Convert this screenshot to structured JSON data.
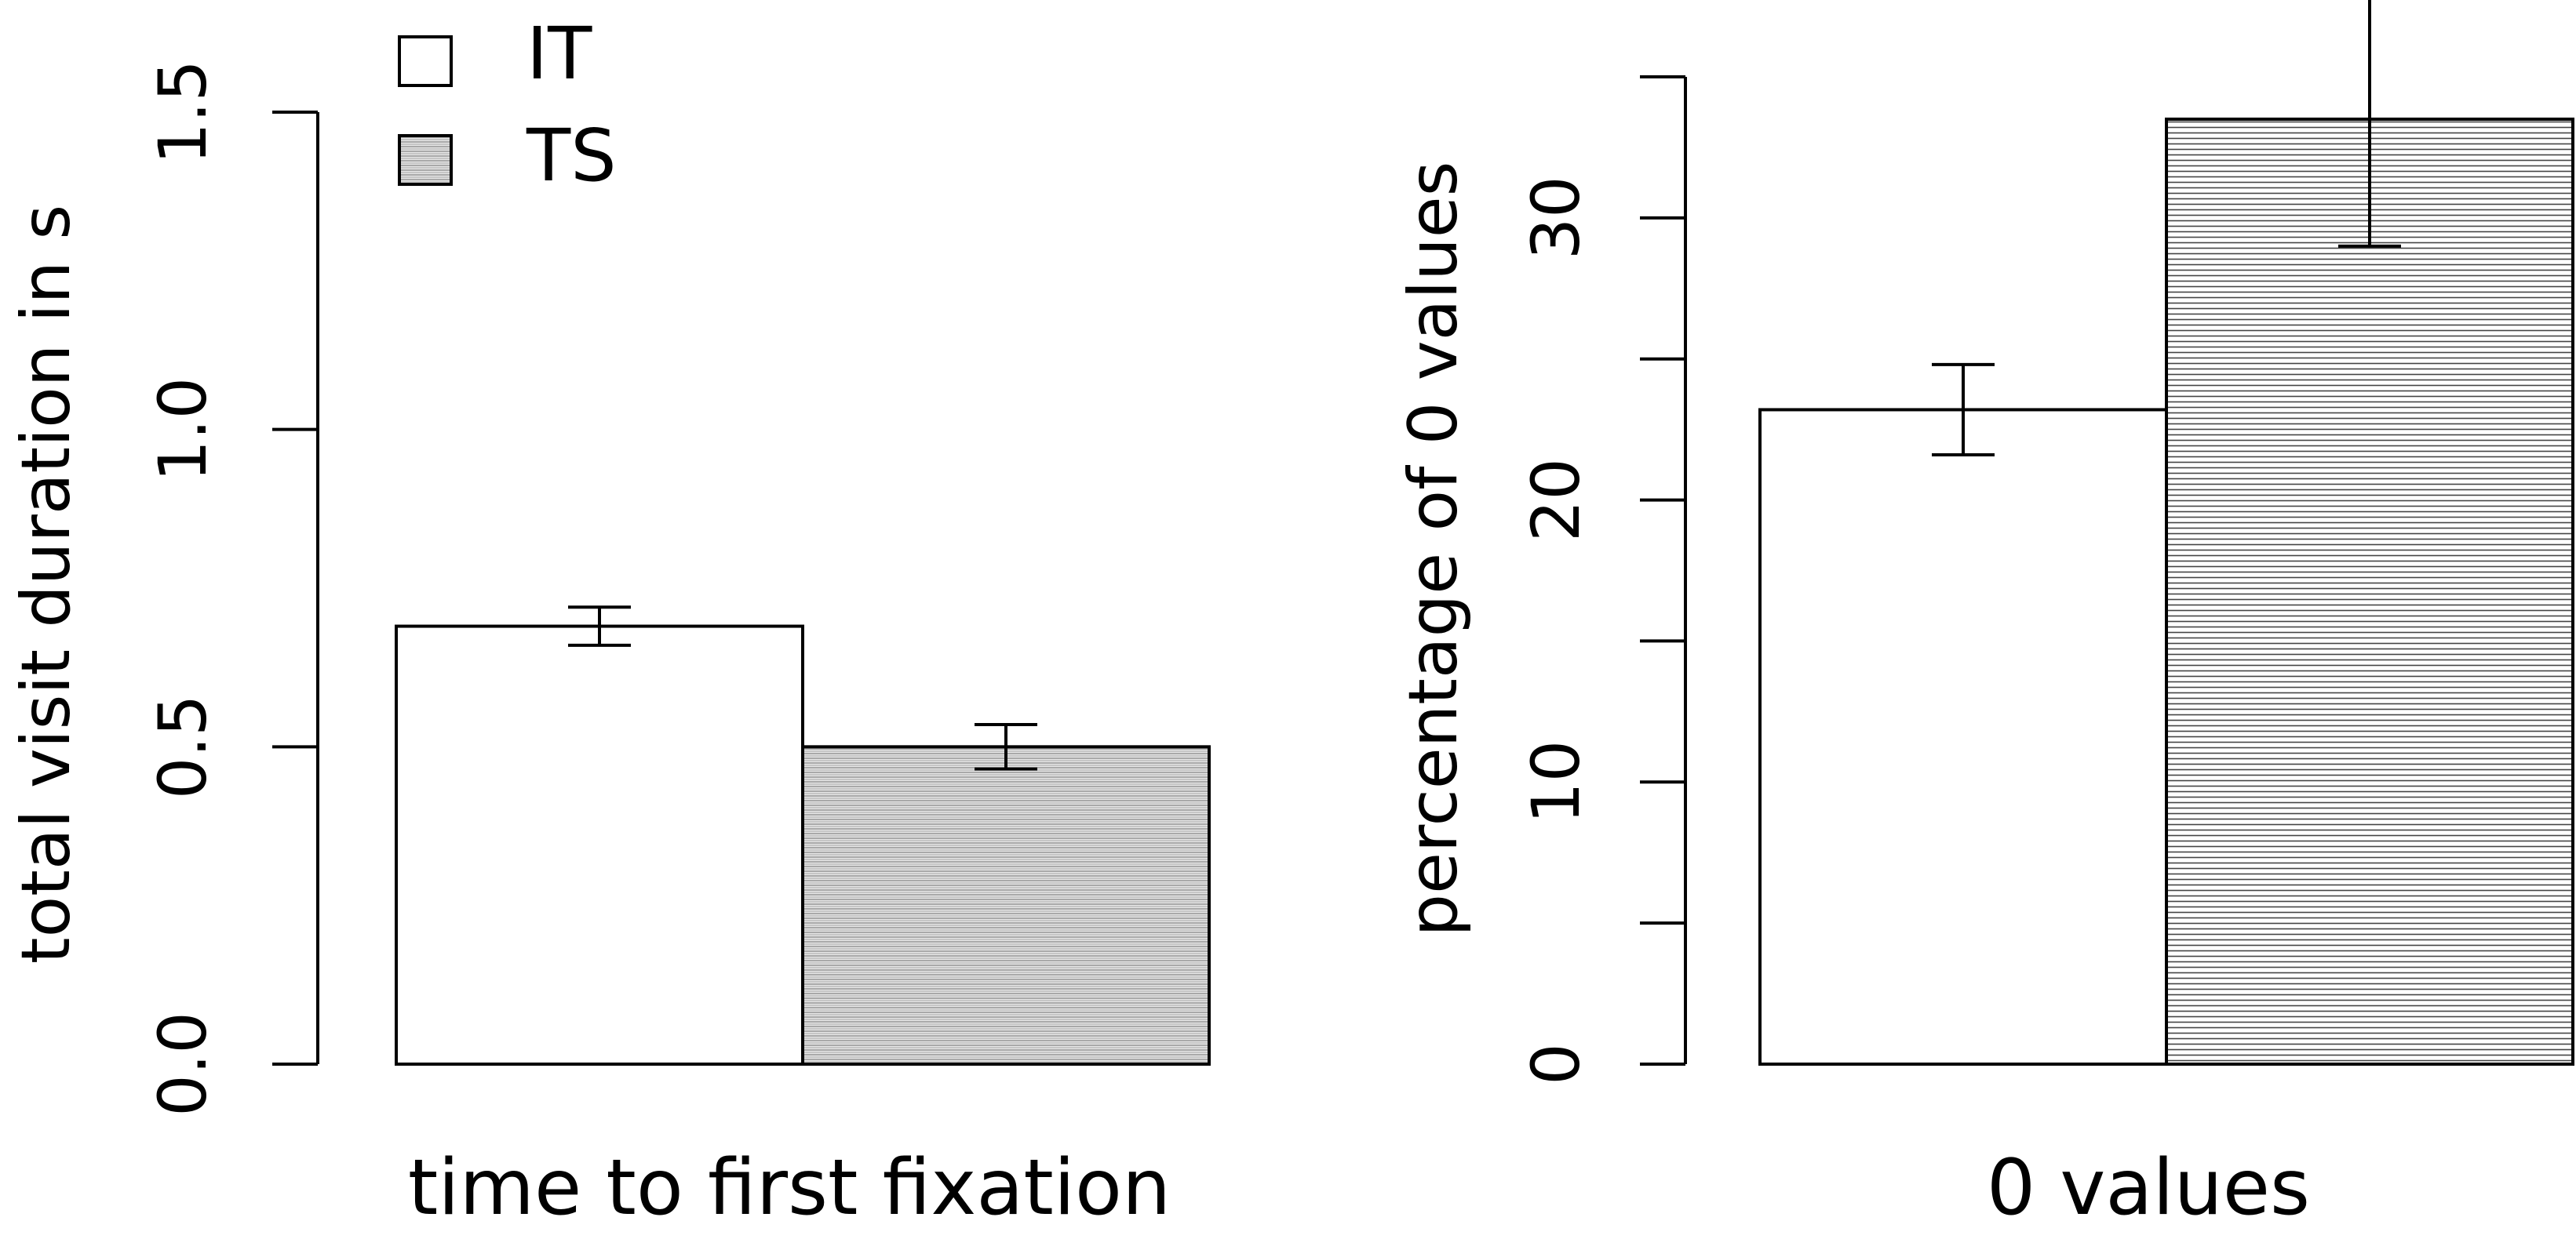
{
  "legend": {
    "position": "top-left",
    "items": [
      {
        "label": "IT",
        "fill": "white"
      },
      {
        "label": "TS",
        "fill": "horizontal-hatch"
      }
    ]
  },
  "colors": {
    "axis": "#000000",
    "bar_plain": "#ffffff",
    "hatch_line": "#9a9a9a",
    "hatch_background": "#e6e6e6"
  },
  "chart_data": [
    {
      "type": "bar",
      "categories": [
        "IT",
        "TS"
      ],
      "values": [
        0.69,
        0.5
      ],
      "errors": [
        0.03,
        0.035
      ],
      "xlabel": "time to first fixation",
      "ylabel": "total visit duration in s",
      "ylim": [
        0,
        1.5
      ],
      "yticks": [
        0.0,
        0.5,
        1.0,
        1.5
      ],
      "ytick_labels": [
        "0.0",
        "0.5",
        "1.0",
        "1.5"
      ],
      "grid": false,
      "hatch_style": "dense-gray"
    },
    {
      "type": "bar",
      "categories": [
        "IT",
        "TS"
      ],
      "values": [
        23.2,
        33.5
      ],
      "errors": [
        1.6,
        4.5
      ],
      "xlabel": "0 values",
      "ylabel": "percentage of 0 values",
      "ylim": [
        0,
        35
      ],
      "yticks": [
        0,
        5,
        10,
        15,
        20,
        25,
        30,
        35
      ],
      "ytick_labels": [
        "0",
        "",
        "10",
        "",
        "20",
        "",
        "30",
        ""
      ],
      "grid": false,
      "hatch_style": "sparse-lines"
    }
  ]
}
